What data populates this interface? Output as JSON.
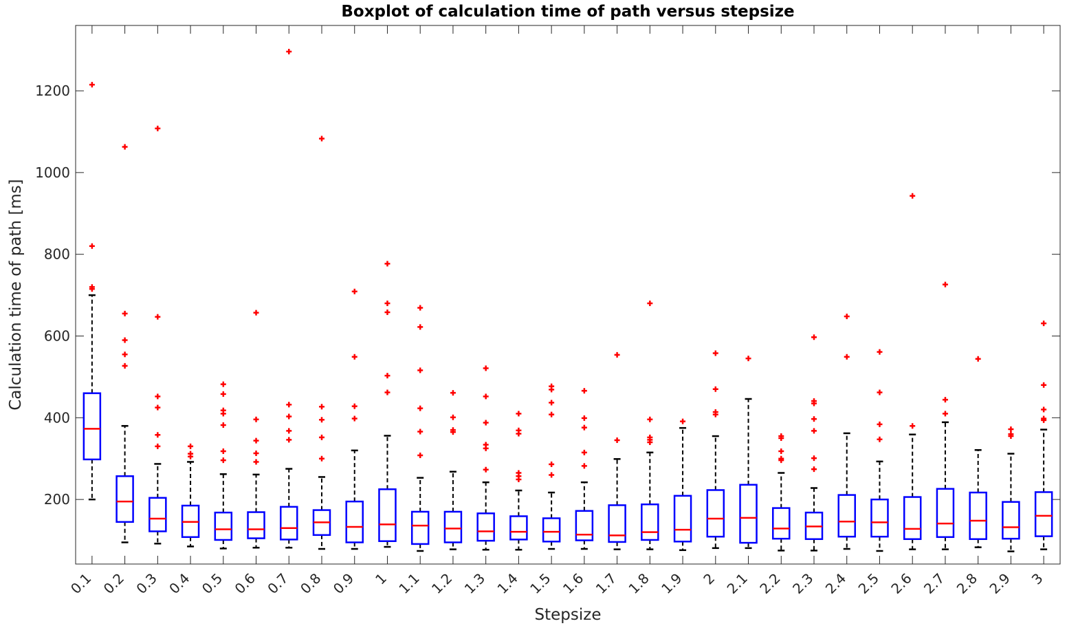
{
  "chart_data": {
    "type": "boxplot",
    "title": "Boxplot of calculation time of path versus stepsize",
    "xlabel": "Stepsize",
    "ylabel": "Calculation time of path [ms]",
    "ylim": [
      42,
      1360
    ],
    "yticks": [
      200,
      400,
      600,
      800,
      1000,
      1200
    ],
    "grid": false,
    "colors": {
      "box": "#0000ff",
      "median": "#ff0000",
      "whisker": "#000000",
      "outlier": "#ff0000",
      "axis": "#262626"
    },
    "categories": [
      "0.1",
      "0.2",
      "0.3",
      "0.4",
      "0.5",
      "0.6",
      "0.7",
      "0.8",
      "0.9",
      "1",
      "1.1",
      "1.2",
      "1.3",
      "1.4",
      "1.5",
      "1.6",
      "1.7",
      "1.8",
      "1.9",
      "2",
      "2.1",
      "2.2",
      "2.3",
      "2.4",
      "2.5",
      "2.6",
      "2.7",
      "2.8",
      "2.9",
      "3"
    ],
    "boxes": [
      {
        "q1": 298,
        "median": 373,
        "q3": 460,
        "whisker_low": 200,
        "whisker_high": 700,
        "outliers": [
          715,
          720,
          820,
          1215
        ]
      },
      {
        "q1": 145,
        "median": 195,
        "q3": 257,
        "whisker_low": 95,
        "whisker_high": 380,
        "outliers": [
          527,
          555,
          590,
          655,
          1063
        ]
      },
      {
        "q1": 122,
        "median": 153,
        "q3": 204,
        "whisker_low": 92,
        "whisker_high": 287,
        "outliers": [
          330,
          358,
          425,
          452,
          647,
          1108
        ]
      },
      {
        "q1": 108,
        "median": 145,
        "q3": 185,
        "whisker_low": 85,
        "whisker_high": 292,
        "outliers": [
          305,
          312,
          330
        ]
      },
      {
        "q1": 101,
        "median": 127,
        "q3": 168,
        "whisker_low": 80,
        "whisker_high": 262,
        "outliers": [
          296,
          318,
          382,
          410,
          418,
          458,
          482
        ]
      },
      {
        "q1": 105,
        "median": 127,
        "q3": 169,
        "whisker_low": 82,
        "whisker_high": 261,
        "outliers": [
          292,
          313,
          344,
          396,
          657
        ]
      },
      {
        "q1": 102,
        "median": 130,
        "q3": 182,
        "whisker_low": 82,
        "whisker_high": 275,
        "outliers": [
          346,
          368,
          403,
          432,
          1296
        ]
      },
      {
        "q1": 113,
        "median": 144,
        "q3": 174,
        "whisker_low": 79,
        "whisker_high": 255,
        "outliers": [
          300,
          352,
          395,
          427,
          1083
        ]
      },
      {
        "q1": 95,
        "median": 133,
        "q3": 195,
        "whisker_low": 79,
        "whisker_high": 320,
        "outliers": [
          398,
          428,
          549,
          709
        ]
      },
      {
        "q1": 98,
        "median": 139,
        "q3": 225,
        "whisker_low": 84,
        "whisker_high": 356,
        "outliers": [
          462,
          503,
          658,
          680,
          777
        ]
      },
      {
        "q1": 91,
        "median": 136,
        "q3": 170,
        "whisker_low": 74,
        "whisker_high": 253,
        "outliers": [
          308,
          366,
          423,
          516,
          622,
          669
        ]
      },
      {
        "q1": 95,
        "median": 129,
        "q3": 170,
        "whisker_low": 78,
        "whisker_high": 268,
        "outliers": [
          365,
          370,
          401,
          461
        ]
      },
      {
        "q1": 99,
        "median": 122,
        "q3": 166,
        "whisker_low": 77,
        "whisker_high": 242,
        "outliers": [
          273,
          325,
          334,
          388,
          452,
          521
        ]
      },
      {
        "q1": 102,
        "median": 121,
        "q3": 159,
        "whisker_low": 77,
        "whisker_high": 222,
        "outliers": [
          249,
          257,
          265,
          361,
          369,
          410
        ]
      },
      {
        "q1": 97,
        "median": 121,
        "q3": 154,
        "whisker_low": 79,
        "whisker_high": 217,
        "outliers": [
          260,
          286,
          408,
          437,
          469,
          477
        ]
      },
      {
        "q1": 100,
        "median": 114,
        "q3": 172,
        "whisker_low": 79,
        "whisker_high": 242,
        "outliers": [
          282,
          315,
          376,
          399,
          466
        ]
      },
      {
        "q1": 96,
        "median": 112,
        "q3": 186,
        "whisker_low": 78,
        "whisker_high": 299,
        "outliers": [
          345,
          554
        ]
      },
      {
        "q1": 101,
        "median": 120,
        "q3": 188,
        "whisker_low": 78,
        "whisker_high": 315,
        "outliers": [
          340,
          346,
          352,
          396,
          680
        ]
      },
      {
        "q1": 97,
        "median": 126,
        "q3": 209,
        "whisker_low": 76,
        "whisker_high": 375,
        "outliers": [
          391
        ]
      },
      {
        "q1": 109,
        "median": 153,
        "q3": 223,
        "whisker_low": 81,
        "whisker_high": 355,
        "outliers": [
          408,
          414,
          470,
          558
        ]
      },
      {
        "q1": 94,
        "median": 155,
        "q3": 236,
        "whisker_low": 81,
        "whisker_high": 446,
        "outliers": [
          545
        ]
      },
      {
        "q1": 104,
        "median": 129,
        "q3": 179,
        "whisker_low": 75,
        "whisker_high": 265,
        "outliers": [
          296,
          300,
          318,
          350,
          355
        ]
      },
      {
        "q1": 103,
        "median": 134,
        "q3": 168,
        "whisker_low": 75,
        "whisker_high": 228,
        "outliers": [
          274,
          301,
          368,
          397,
          435,
          441,
          597
        ]
      },
      {
        "q1": 109,
        "median": 146,
        "q3": 211,
        "whisker_low": 79,
        "whisker_high": 362,
        "outliers": [
          549,
          648
        ]
      },
      {
        "q1": 109,
        "median": 144,
        "q3": 200,
        "whisker_low": 74,
        "whisker_high": 293,
        "outliers": [
          347,
          384,
          462,
          561
        ]
      },
      {
        "q1": 103,
        "median": 128,
        "q3": 206,
        "whisker_low": 78,
        "whisker_high": 359,
        "outliers": [
          380,
          943
        ]
      },
      {
        "q1": 108,
        "median": 141,
        "q3": 226,
        "whisker_low": 78,
        "whisker_high": 389,
        "outliers": [
          410,
          444,
          726
        ]
      },
      {
        "q1": 103,
        "median": 148,
        "q3": 217,
        "whisker_low": 83,
        "whisker_high": 321,
        "outliers": [
          544
        ]
      },
      {
        "q1": 104,
        "median": 132,
        "q3": 194,
        "whisker_low": 73,
        "whisker_high": 312,
        "outliers": [
          355,
          360,
          372
        ]
      },
      {
        "q1": 110,
        "median": 160,
        "q3": 218,
        "whisker_low": 78,
        "whisker_high": 371,
        "outliers": [
          394,
          398,
          420,
          480,
          631
        ]
      }
    ]
  }
}
